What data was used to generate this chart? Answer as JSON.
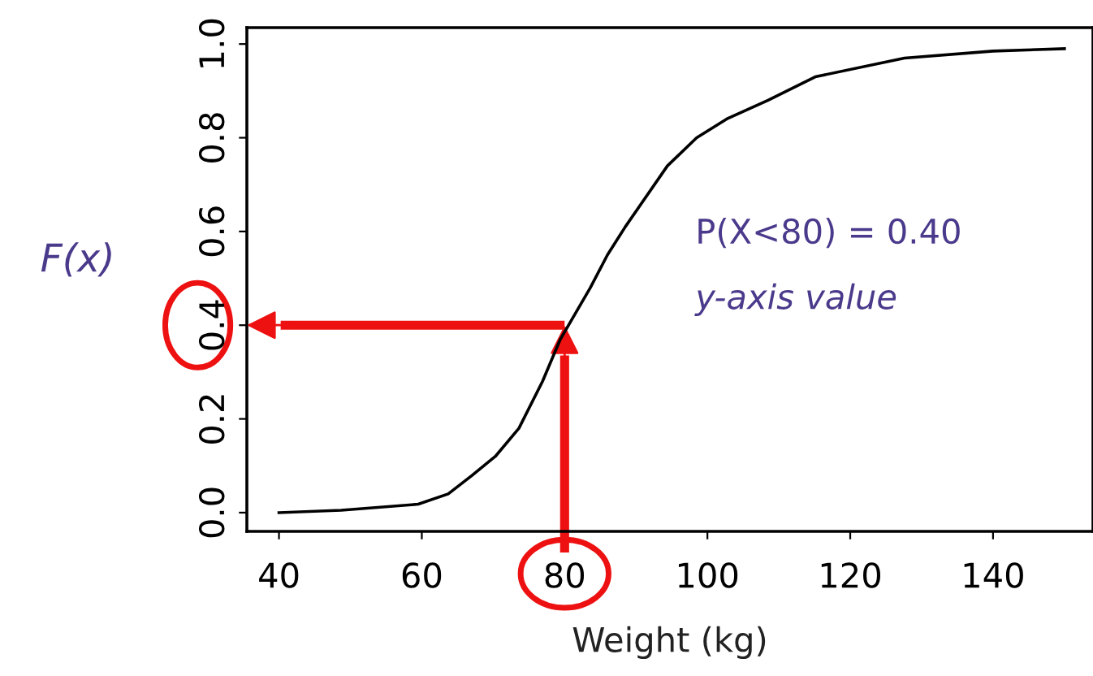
{
  "chart_data": {
    "type": "line",
    "xlabel": "Weight (kg)",
    "ylabel": "F(x)",
    "x": [
      40,
      48.7,
      59.5,
      63.7,
      67,
      70.3,
      73.6,
      76.9,
      79.4,
      83.6,
      86,
      88.5,
      94.4,
      98.5,
      102.7,
      108.5,
      115.1,
      127.6,
      140,
      150
    ],
    "series": [
      {
        "color": "#000000",
        "values": [
          0.0,
          0.005,
          0.018,
          0.04,
          0.079,
          0.12,
          0.18,
          0.28,
          0.37,
          0.48,
          0.55,
          0.61,
          0.74,
          0.8,
          0.84,
          0.88,
          0.93,
          0.97,
          0.985,
          0.99
        ]
      }
    ],
    "xlim": [
      35.5,
      154
    ],
    "ylim": [
      -0.04,
      1.035
    ],
    "xticks": [
      40,
      60,
      80,
      100,
      120,
      140
    ],
    "yticks": [
      {
        "value": 0,
        "label": "0.0"
      },
      0.2,
      0.4,
      0.6,
      0.8,
      {
        "value": 1,
        "label": "1.0"
      }
    ],
    "annotations": [
      "P(X<80) = 0.40",
      "y-axis value"
    ],
    "ref_lines": [
      {
        "axis": "x",
        "value": 80,
        "color": "#ee1111"
      },
      {
        "axis": "y",
        "value": 0.4,
        "color": "#ee1111"
      }
    ],
    "grid": false,
    "legend": false,
    "marker": "none",
    "line_style": "solid"
  }
}
